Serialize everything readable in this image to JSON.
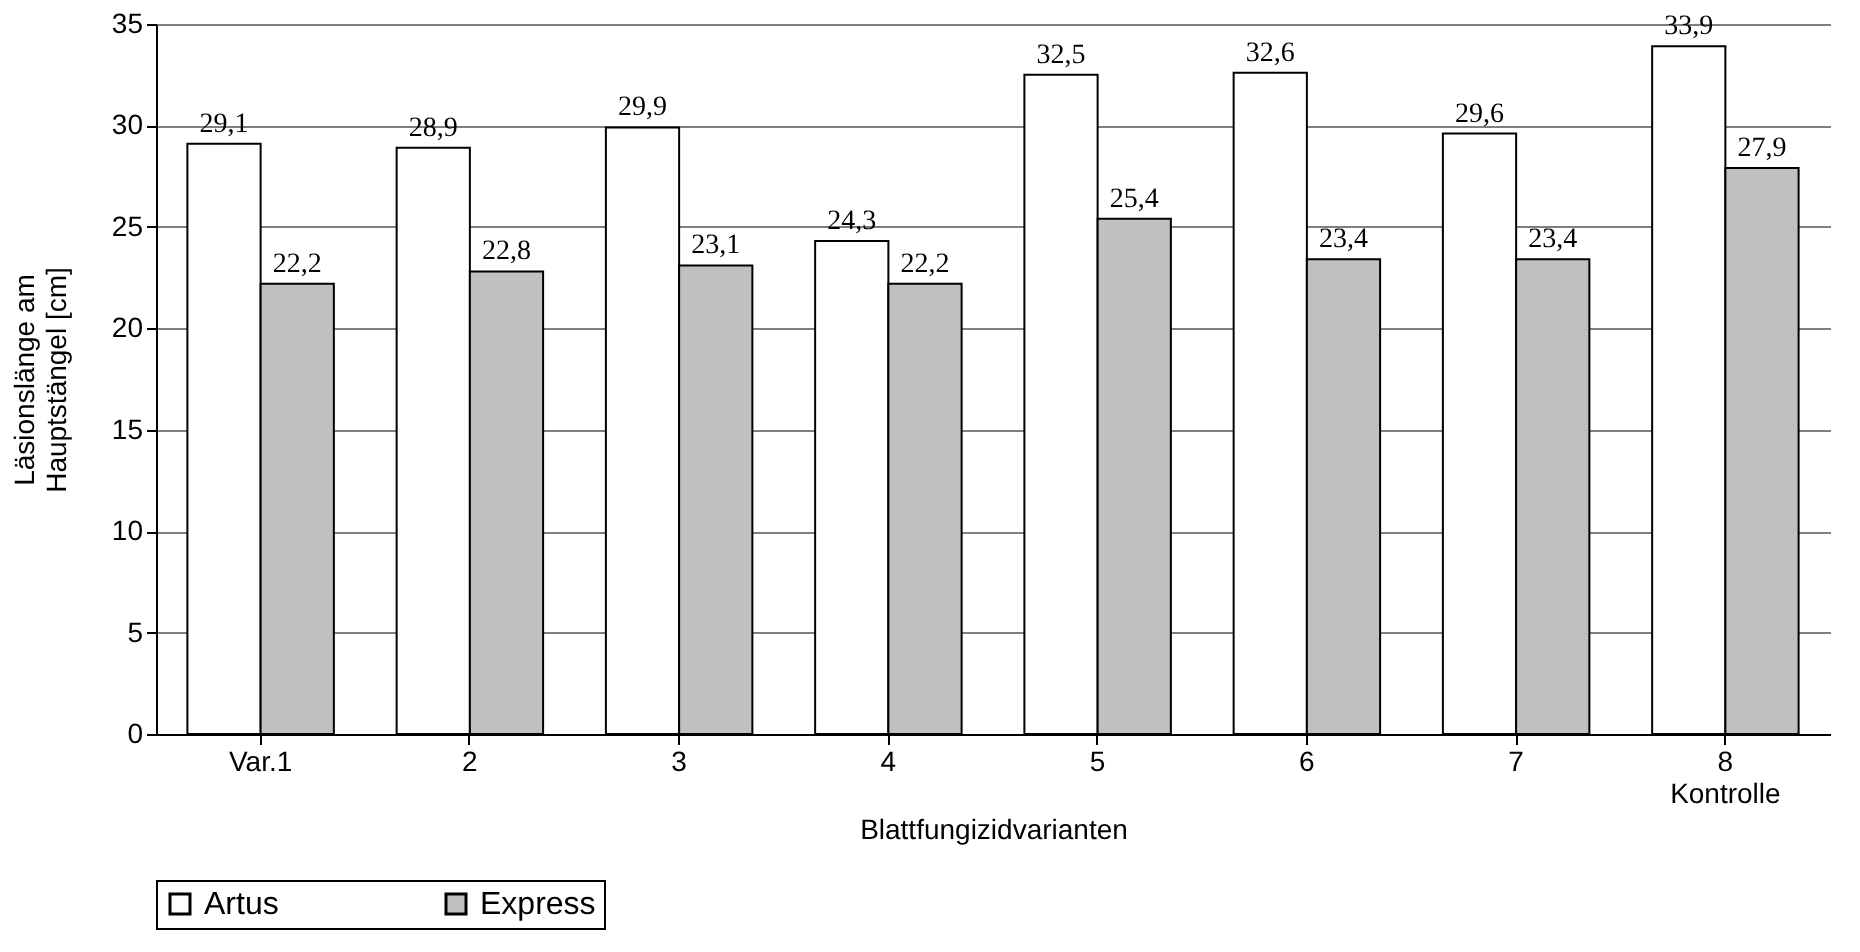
{
  "chart_data": {
    "type": "bar",
    "xlabel": "Blattfungizidvarianten",
    "ylabel": "Läsionslänge am Hauptstängel [cm]",
    "categories": [
      "Var.1",
      "2",
      "3",
      "4",
      "5",
      "6",
      "7",
      "8\nKontrolle"
    ],
    "series": [
      {
        "name": "Artus",
        "color": "#ffffff",
        "values": [
          29.1,
          28.9,
          29.9,
          24.3,
          32.5,
          32.6,
          29.6,
          33.9
        ],
        "value_labels": [
          "29,1",
          "28,9",
          "29,9",
          "24,3",
          "32,5",
          "32,6",
          "29,6",
          "33,9"
        ]
      },
      {
        "name": "Express",
        "color": "#c0c0c0",
        "values": [
          22.2,
          22.8,
          23.1,
          22.2,
          25.4,
          23.4,
          23.4,
          27.9
        ],
        "value_labels": [
          "22,2",
          "22,8",
          "23,1",
          "22,2",
          "25,4",
          "23,4",
          "23,4",
          "27,9"
        ]
      }
    ],
    "ylim": [
      0,
      35
    ],
    "yticks": [
      0,
      5,
      10,
      15,
      20,
      25,
      30,
      35
    ],
    "grid": "y",
    "legend": "bottom"
  }
}
